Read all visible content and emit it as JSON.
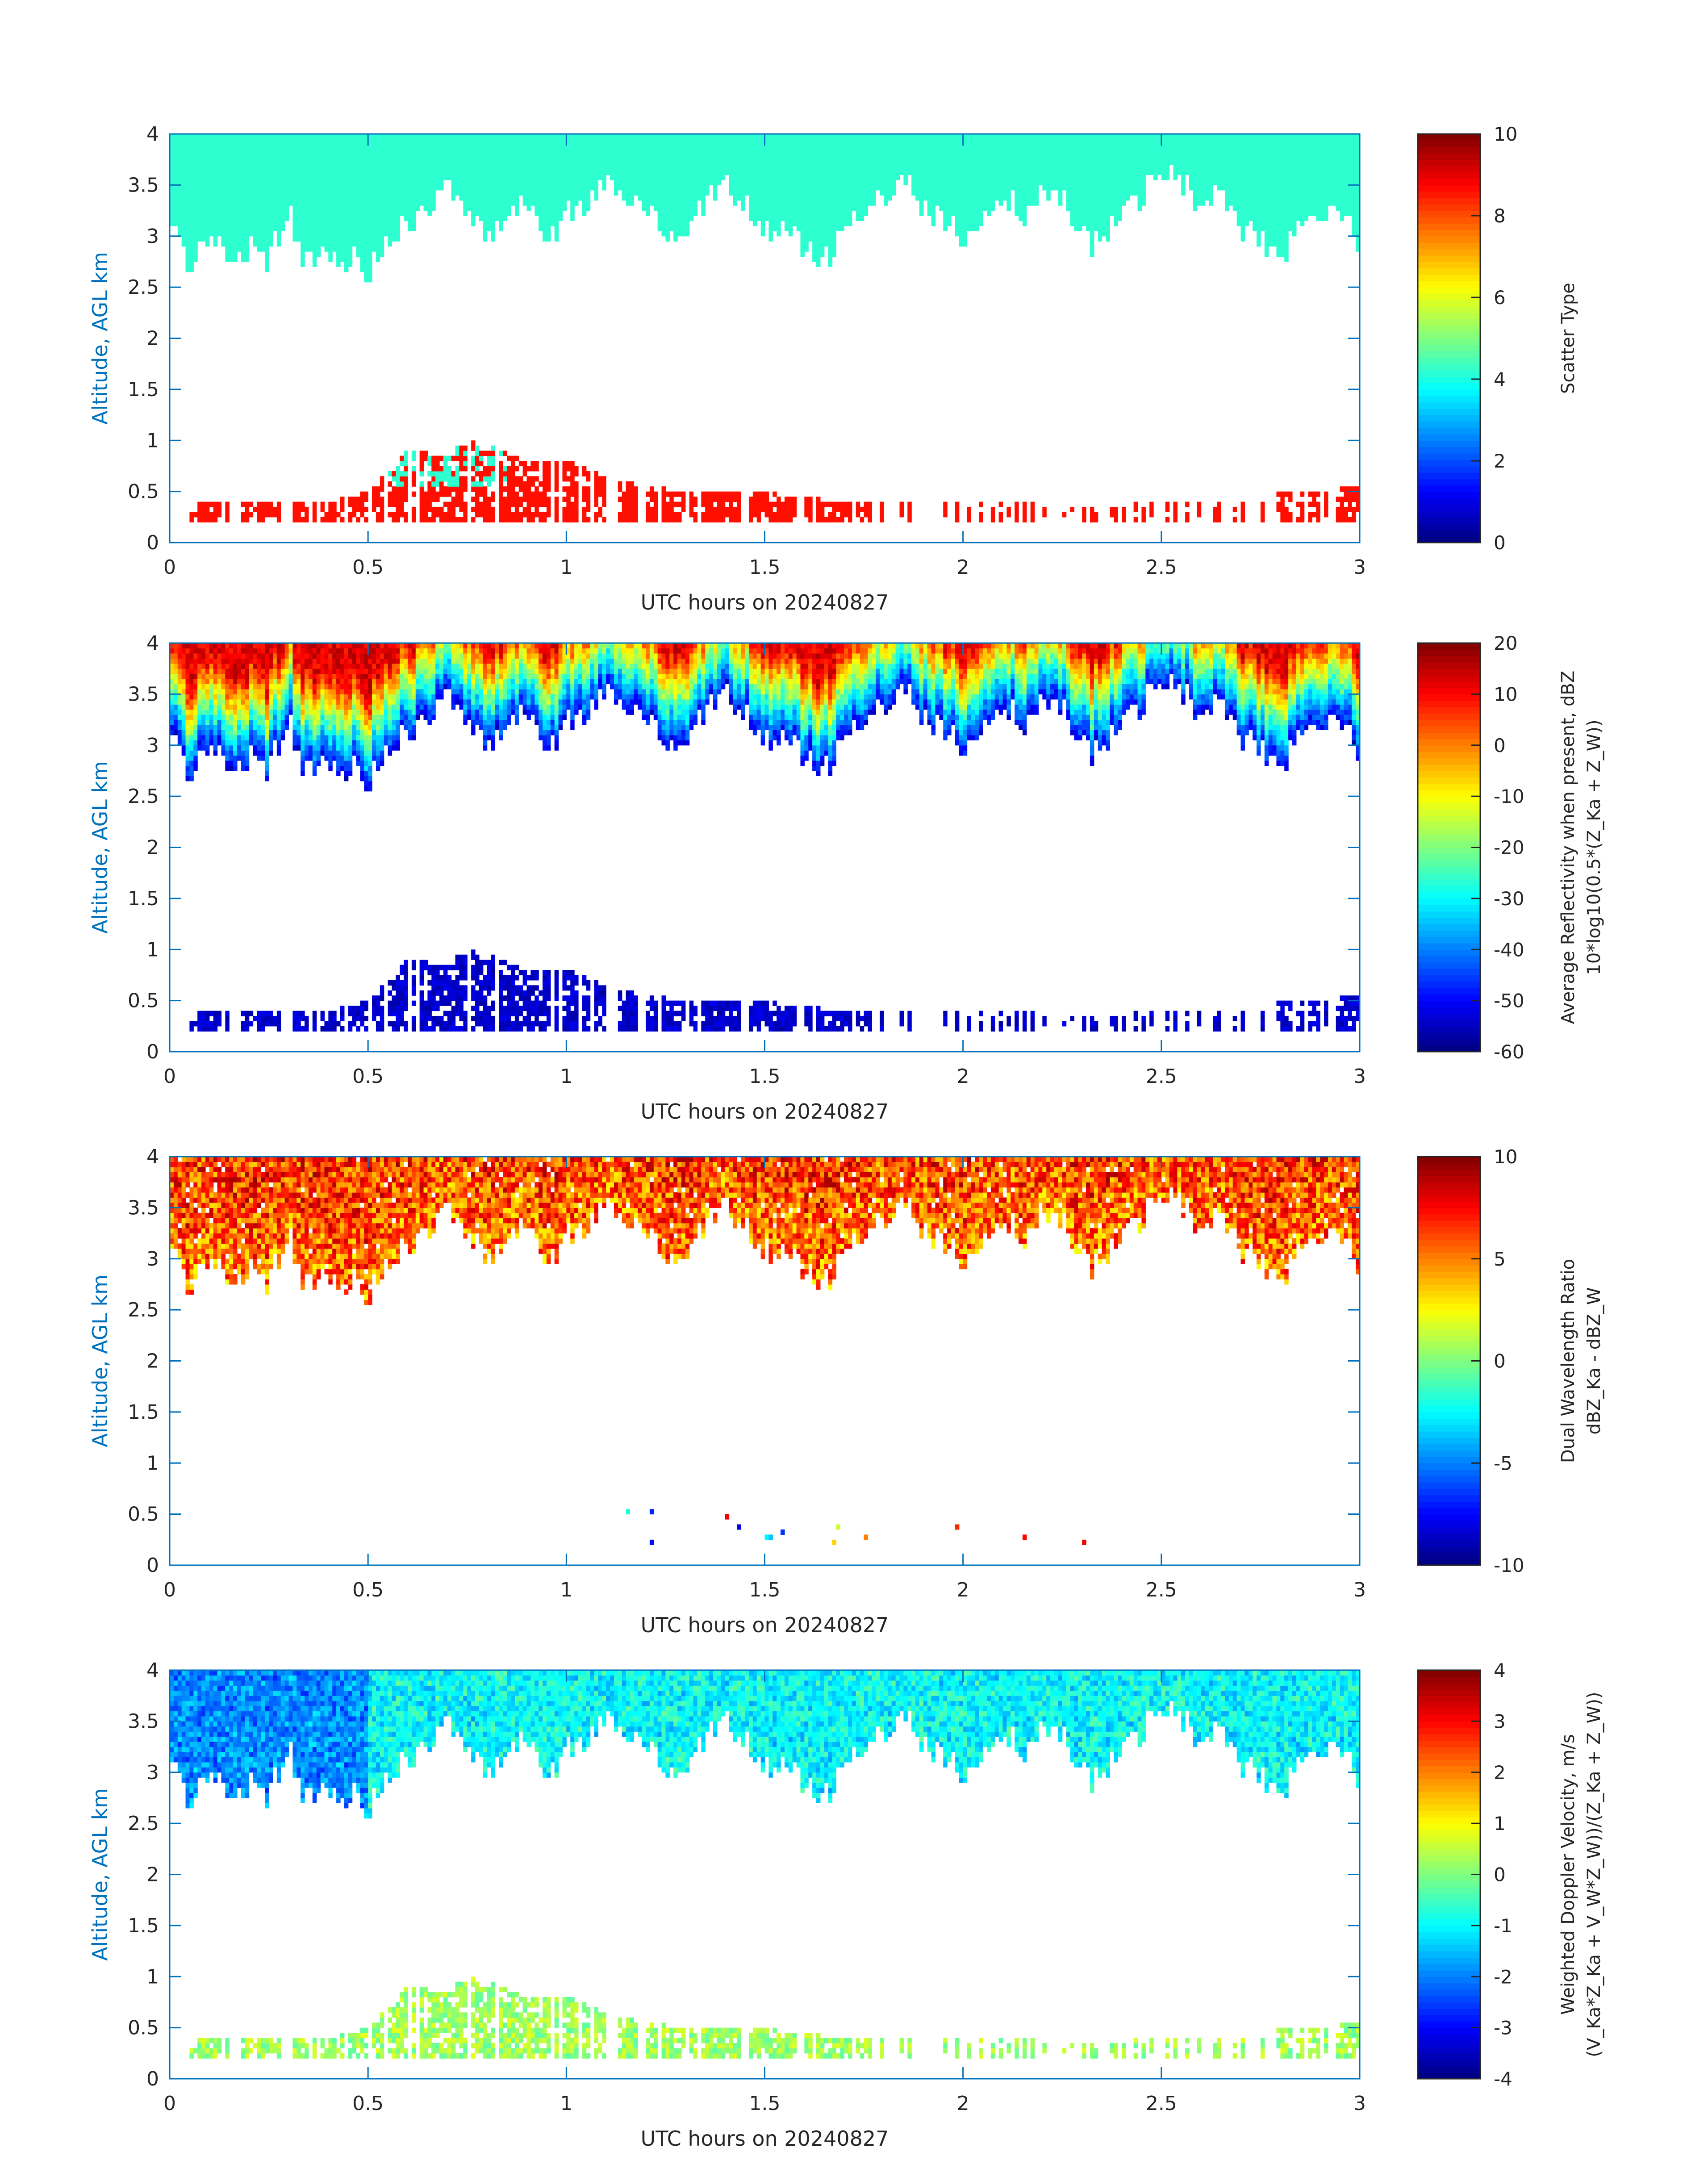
{
  "figure": {
    "date_label": "UTC hours on 20240827"
  },
  "chart_data": [
    {
      "type": "heatmap",
      "title": "",
      "xlabel": "UTC hours on 20240827",
      "ylabel": "Altitude, AGL km",
      "xlim": [
        0,
        3
      ],
      "ylim": [
        0,
        4
      ],
      "xticks": [
        "0",
        "0.5",
        "1",
        "1.5",
        "2",
        "2.5",
        "3"
      ],
      "yticks": [
        "0",
        "0.5",
        "1",
        "1.5",
        "2",
        "2.5",
        "3",
        "3.5",
        "4"
      ],
      "colorbar": {
        "label_lines": [
          "Scatter Type"
        ],
        "clim": [
          0,
          10
        ],
        "ticks": [
          "0",
          "2",
          "4",
          "6",
          "8",
          "10"
        ]
      },
      "field": "scatter_type",
      "upper_layer_value": 4.2,
      "lower_layer_value": 8.6,
      "lower_patch_value": 4.2
    },
    {
      "type": "heatmap",
      "title": "",
      "xlabel": "UTC hours on 20240827",
      "ylabel": "Altitude, AGL km",
      "xlim": [
        0,
        3
      ],
      "ylim": [
        0,
        4
      ],
      "xticks": [
        "0",
        "0.5",
        "1",
        "1.5",
        "2",
        "2.5",
        "3"
      ],
      "yticks": [
        "0",
        "0.5",
        "1",
        "1.5",
        "2",
        "2.5",
        "3",
        "3.5",
        "4"
      ],
      "colorbar": {
        "label_lines": [
          "Average Reflectivity when present, dBZ",
          "10*log10(0.5*(Z_Ka + Z_W))"
        ],
        "clim": [
          -60,
          20
        ],
        "ticks": [
          "-60",
          "-50",
          "-40",
          "-30",
          "-20",
          "-10",
          "0",
          "10",
          "20"
        ]
      },
      "field": "reflectivity",
      "cloud_top_value": 12,
      "cloud_base_value": -52,
      "lower_layer_value": -57
    },
    {
      "type": "heatmap",
      "title": "",
      "xlabel": "UTC hours on 20240827",
      "ylabel": "Altitude, AGL km",
      "xlim": [
        0,
        3
      ],
      "ylim": [
        0,
        4
      ],
      "xticks": [
        "0",
        "0.5",
        "1",
        "1.5",
        "2",
        "2.5",
        "3"
      ],
      "yticks": [
        "0",
        "0.5",
        "1",
        "1.5",
        "2",
        "2.5",
        "3",
        "3.5",
        "4"
      ],
      "colorbar": {
        "label_lines": [
          "Dual Wavelength Ratio",
          "dBZ_Ka - dBZ_W"
        ],
        "clim": [
          -10,
          10
        ],
        "ticks": [
          "-10",
          "-5",
          "0",
          "5",
          "10"
        ]
      },
      "field": "dwr",
      "typical_range": [
        2,
        9
      ]
    },
    {
      "type": "heatmap",
      "title": "",
      "xlabel": "UTC hours on 20240827",
      "ylabel": "Altitude, AGL km",
      "xlim": [
        0,
        3
      ],
      "ylim": [
        0,
        4
      ],
      "xticks": [
        "0",
        "0.5",
        "1",
        "1.5",
        "2",
        "2.5",
        "3"
      ],
      "yticks": [
        "0",
        "0.5",
        "1",
        "1.5",
        "2",
        "2.5",
        "3",
        "3.5",
        "4"
      ],
      "colorbar": {
        "label_lines": [
          "Weighted Doppler Velocity, m/s",
          "(V_Ka*Z_Ka + V_W*Z_W))/(Z_Ka + Z_W))"
        ],
        "clim": [
          -4,
          4
        ],
        "ticks": [
          "-4",
          "-3",
          "-2",
          "-1",
          "0",
          "1",
          "2",
          "3",
          "4"
        ]
      },
      "field": "velocity",
      "typical_range": [
        -2,
        0.5
      ]
    }
  ],
  "cloud_base_km_profile": [
    {
      "t": 0.0,
      "z": 3.1
    },
    {
      "t": 0.05,
      "z": 2.75
    },
    {
      "t": 0.1,
      "z": 3.0
    },
    {
      "t": 0.15,
      "z": 2.8
    },
    {
      "t": 0.2,
      "z": 2.9
    },
    {
      "t": 0.25,
      "z": 2.75
    },
    {
      "t": 0.3,
      "z": 3.3
    },
    {
      "t": 0.33,
      "z": 2.75
    },
    {
      "t": 0.4,
      "z": 2.85
    },
    {
      "t": 0.45,
      "z": 2.8
    },
    {
      "t": 0.5,
      "z": 2.65
    },
    {
      "t": 0.55,
      "z": 3.0
    },
    {
      "t": 0.6,
      "z": 3.1
    },
    {
      "t": 0.65,
      "z": 3.3
    },
    {
      "t": 0.7,
      "z": 3.5
    },
    {
      "t": 0.75,
      "z": 3.3
    },
    {
      "t": 0.8,
      "z": 3.0
    },
    {
      "t": 0.85,
      "z": 3.2
    },
    {
      "t": 0.9,
      "z": 3.3
    },
    {
      "t": 0.95,
      "z": 3.0
    },
    {
      "t": 1.0,
      "z": 3.2
    },
    {
      "t": 1.05,
      "z": 3.35
    },
    {
      "t": 1.1,
      "z": 3.55
    },
    {
      "t": 1.15,
      "z": 3.4
    },
    {
      "t": 1.2,
      "z": 3.3
    },
    {
      "t": 1.25,
      "z": 3.1
    },
    {
      "t": 1.3,
      "z": 3.0
    },
    {
      "t": 1.35,
      "z": 3.3
    },
    {
      "t": 1.4,
      "z": 3.5
    },
    {
      "t": 1.45,
      "z": 3.3
    },
    {
      "t": 1.5,
      "z": 3.0
    },
    {
      "t": 1.55,
      "z": 3.2
    },
    {
      "t": 1.6,
      "z": 2.9
    },
    {
      "t": 1.65,
      "z": 2.75
    },
    {
      "t": 1.7,
      "z": 3.0
    },
    {
      "t": 1.75,
      "z": 3.2
    },
    {
      "t": 1.8,
      "z": 3.4
    },
    {
      "t": 1.85,
      "z": 3.55
    },
    {
      "t": 1.9,
      "z": 3.3
    },
    {
      "t": 1.95,
      "z": 3.1
    },
    {
      "t": 2.0,
      "z": 3.0
    },
    {
      "t": 2.05,
      "z": 3.2
    },
    {
      "t": 2.1,
      "z": 3.45
    },
    {
      "t": 2.15,
      "z": 3.2
    },
    {
      "t": 2.2,
      "z": 3.4
    },
    {
      "t": 2.25,
      "z": 3.35
    },
    {
      "t": 2.3,
      "z": 3.0
    },
    {
      "t": 2.33,
      "z": 2.9
    },
    {
      "t": 2.4,
      "z": 3.3
    },
    {
      "t": 2.45,
      "z": 3.4
    },
    {
      "t": 2.5,
      "z": 3.6
    },
    {
      "t": 2.55,
      "z": 3.55
    },
    {
      "t": 2.6,
      "z": 3.3
    },
    {
      "t": 2.65,
      "z": 3.4
    },
    {
      "t": 2.7,
      "z": 3.1
    },
    {
      "t": 2.75,
      "z": 3.0
    },
    {
      "t": 2.8,
      "z": 2.75
    },
    {
      "t": 2.85,
      "z": 3.2
    },
    {
      "t": 2.9,
      "z": 3.1
    },
    {
      "t": 2.95,
      "z": 3.3
    },
    {
      "t": 3.0,
      "z": 2.9
    }
  ],
  "lower_layer_top_km_profile": [
    {
      "t": 0.0,
      "z": 0.0
    },
    {
      "t": 0.08,
      "z": 0.35
    },
    {
      "t": 0.2,
      "z": 0.35
    },
    {
      "t": 0.3,
      "z": 0.35
    },
    {
      "t": 0.4,
      "z": 0.35
    },
    {
      "t": 0.5,
      "z": 0.45
    },
    {
      "t": 0.55,
      "z": 0.65
    },
    {
      "t": 0.6,
      "z": 0.85
    },
    {
      "t": 0.7,
      "z": 0.8
    },
    {
      "t": 0.75,
      "z": 0.95
    },
    {
      "t": 0.8,
      "z": 0.9
    },
    {
      "t": 0.9,
      "z": 0.75
    },
    {
      "t": 1.0,
      "z": 0.75
    },
    {
      "t": 1.1,
      "z": 0.6
    },
    {
      "t": 1.2,
      "z": 0.5
    },
    {
      "t": 1.3,
      "z": 0.45
    },
    {
      "t": 1.4,
      "z": 0.45
    },
    {
      "t": 1.5,
      "z": 0.45
    },
    {
      "t": 1.6,
      "z": 0.4
    },
    {
      "t": 1.7,
      "z": 0.35
    },
    {
      "t": 1.8,
      "z": 0.35
    },
    {
      "t": 1.9,
      "z": 0.35
    },
    {
      "t": 2.0,
      "z": 0.35
    },
    {
      "t": 2.1,
      "z": 0.35
    },
    {
      "t": 2.2,
      "z": 0.35
    },
    {
      "t": 2.3,
      "z": 0.3
    },
    {
      "t": 2.5,
      "z": 0.35
    },
    {
      "t": 2.6,
      "z": 0.35
    },
    {
      "t": 2.7,
      "z": 0.35
    },
    {
      "t": 2.8,
      "z": 0.45
    },
    {
      "t": 2.9,
      "z": 0.45
    },
    {
      "t": 3.0,
      "z": 0.5
    }
  ]
}
